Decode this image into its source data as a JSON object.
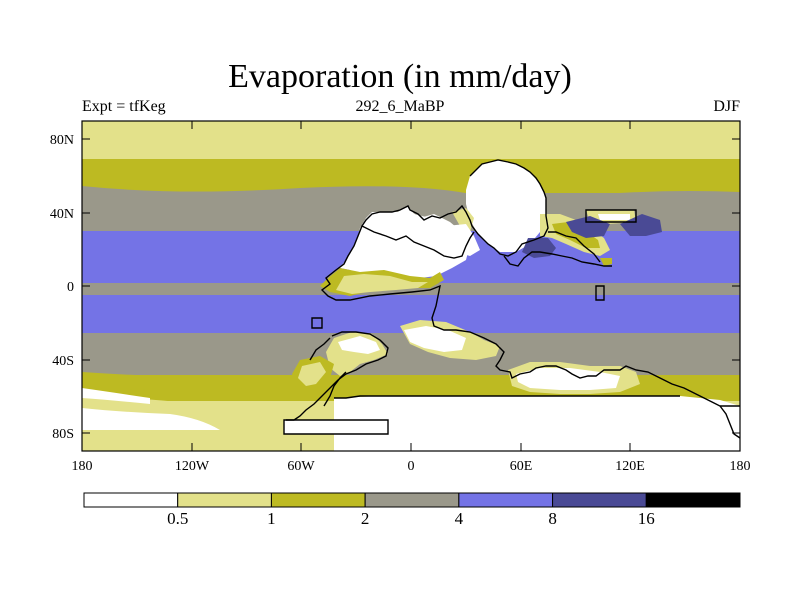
{
  "title": "Evaporation (in mm/day)",
  "subtitle_left": "Expt = tfKeg",
  "subtitle_center": "292_6_MaBP",
  "subtitle_right": "DJF",
  "map": {
    "x_ticks": [
      "180",
      "120W",
      "60W",
      "0",
      "60E",
      "120E",
      "180"
    ],
    "y_ticks": [
      "80N",
      "40N",
      "0",
      "40S",
      "80S"
    ]
  },
  "colorbar": {
    "levels": [
      "0.5",
      "1",
      "2",
      "4",
      "8",
      "16"
    ],
    "colors": [
      "#ffffff",
      "#e3e18a",
      "#bdba22",
      "#9a988a",
      "#7473e6",
      "#4a4a95",
      "#000000"
    ]
  }
}
